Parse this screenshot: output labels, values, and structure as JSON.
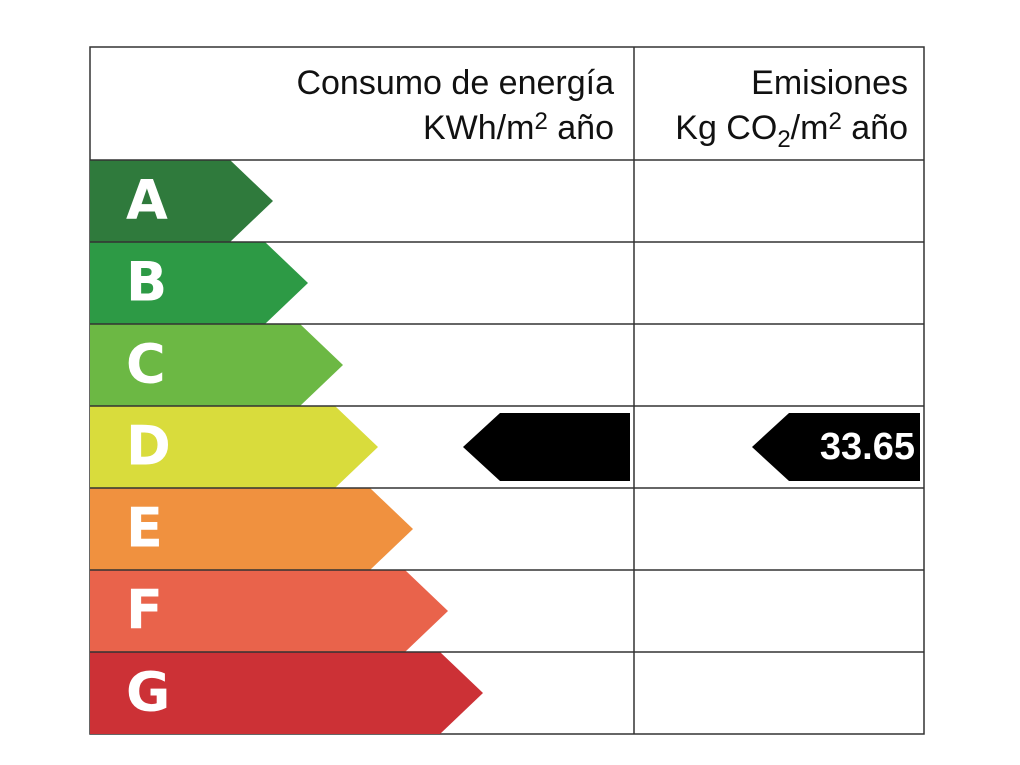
{
  "energy_header": {
    "title": "Consumo de energía",
    "unit": [
      "KWh/m",
      "2",
      " año"
    ]
  },
  "emissions_header": {
    "title": "Emisiones",
    "unit": [
      "Kg CO",
      "2",
      "/m",
      "2",
      " año"
    ]
  },
  "classes": [
    {
      "letter": "A",
      "color": "#2f7a3c"
    },
    {
      "letter": "B",
      "color": "#2d9a45"
    },
    {
      "letter": "C",
      "color": "#6cb844"
    },
    {
      "letter": "D",
      "color": "#d9dc3c"
    },
    {
      "letter": "E",
      "color": "#f0913f"
    },
    {
      "letter": "F",
      "color": "#e9634b"
    },
    {
      "letter": "G",
      "color": "#cc3136"
    }
  ],
  "consumption_marker": {
    "class": "D"
  },
  "emissions_marker": {
    "class": "D",
    "value": 33.65
  }
}
